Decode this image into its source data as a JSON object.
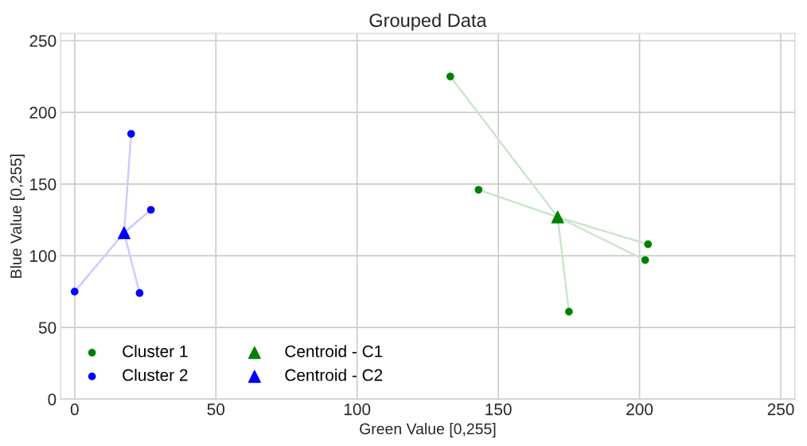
{
  "chart_data": {
    "type": "scatter",
    "title": "Grouped Data",
    "xlabel": "Green Value [0,255]",
    "ylabel": "Blue Value [0,255]",
    "xlim": [
      -5,
      255
    ],
    "ylim": [
      0,
      255
    ],
    "xticks": [
      0,
      50,
      100,
      150,
      200,
      250
    ],
    "yticks": [
      0,
      50,
      100,
      150,
      200,
      250
    ],
    "grid": true,
    "legend": "bottom left",
    "series": [
      {
        "type": "line",
        "color": "#cce6cc",
        "x": [
          171,
          133,
          171,
          143,
          171,
          203,
          171,
          202,
          171,
          175
        ],
        "values": [
          127,
          225,
          127,
          146,
          127,
          108,
          127,
          97,
          127,
          61
        ],
        "marker": "none"
      },
      {
        "type": "line",
        "color": "#ccccff",
        "x": [
          17.5,
          20,
          17.5,
          27,
          17.5,
          0,
          17.5,
          23
        ],
        "values": [
          116,
          185,
          116,
          132,
          116,
          75,
          116,
          74
        ],
        "marker": "none"
      },
      {
        "name": "Cluster 1",
        "color": "#008000",
        "x": [
          133,
          143,
          203,
          202,
          175
        ],
        "values": [
          225,
          146,
          108,
          97,
          61
        ],
        "marker": "circle"
      },
      {
        "name": "Cluster 2",
        "color": "#0000ff",
        "x": [
          20,
          27,
          0,
          23
        ],
        "values": [
          185,
          132,
          75,
          74
        ],
        "marker": "circle"
      },
      {
        "name": "Centroid - C1",
        "color": "#008000",
        "x": [
          171
        ],
        "values": [
          127
        ],
        "marker": "triangle"
      },
      {
        "name": "Centroid - C2",
        "color": "#0000ff",
        "x": [
          17.5
        ],
        "values": [
          116
        ],
        "marker": "triangle"
      }
    ]
  }
}
